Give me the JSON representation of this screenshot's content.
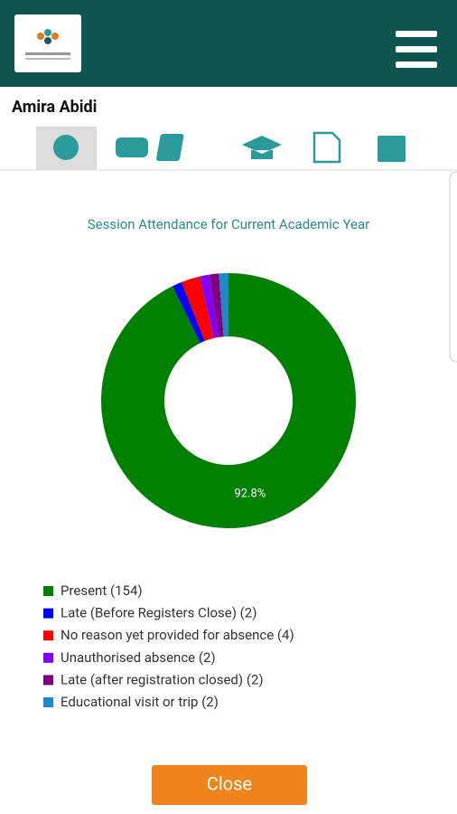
{
  "header": {
    "student_name": "Amira Abidi"
  },
  "chart_data": {
    "type": "pie",
    "title": "Session Attendance for Current Academic Year",
    "categories": [
      "Present (154)",
      "Late (Before Registers Close) (2)",
      "No reason yet provided for absence (4)",
      "Unauthorised absence (2)",
      "Late (after registration closed) (2)",
      "Educational visit or trip (2)"
    ],
    "values": [
      154,
      2,
      4,
      2,
      2,
      2
    ],
    "colors": [
      "#008000",
      "#0000ff",
      "#ff0000",
      "#8000ff",
      "#800080",
      "#1f88c8"
    ],
    "annotation": "92.8%"
  },
  "footer": {
    "button": "Close"
  }
}
